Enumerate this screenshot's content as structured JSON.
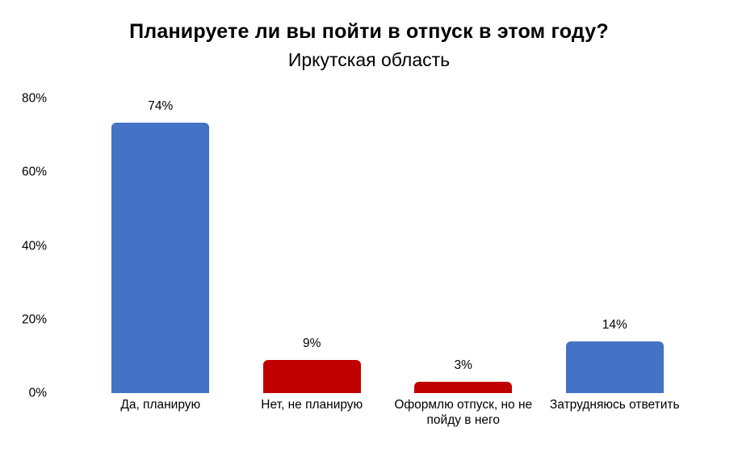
{
  "title": "Планируете ли вы пойти в отпуск в этом году?",
  "subtitle": "Иркутская область",
  "chart_data": {
    "type": "bar",
    "title": "Планируете ли вы пойти в отпуск в этом году?",
    "subtitle": "Иркутская область",
    "categories": [
      "Да, планирую",
      "Нет, не планирую",
      "Оформлю отпуск, но не пойду в него",
      "Затрудняюсь ответить"
    ],
    "values": [
      74,
      9,
      3,
      14
    ],
    "value_labels": [
      "74%",
      "9%",
      "3%",
      "14%"
    ],
    "bar_colors": [
      "#4472C4",
      "#C00000",
      "#C00000",
      "#4472C4"
    ],
    "ytick_labels": [
      "80%",
      "60%",
      "40%",
      "20%",
      "0%"
    ],
    "ytick_values": [
      80,
      60,
      40,
      20,
      0
    ],
    "ylim": [
      0,
      80
    ],
    "xlabel": "",
    "ylabel": "",
    "grid": false,
    "legend_position": "none",
    "background_color": "#FFFFFF",
    "text_color": "#000000"
  }
}
